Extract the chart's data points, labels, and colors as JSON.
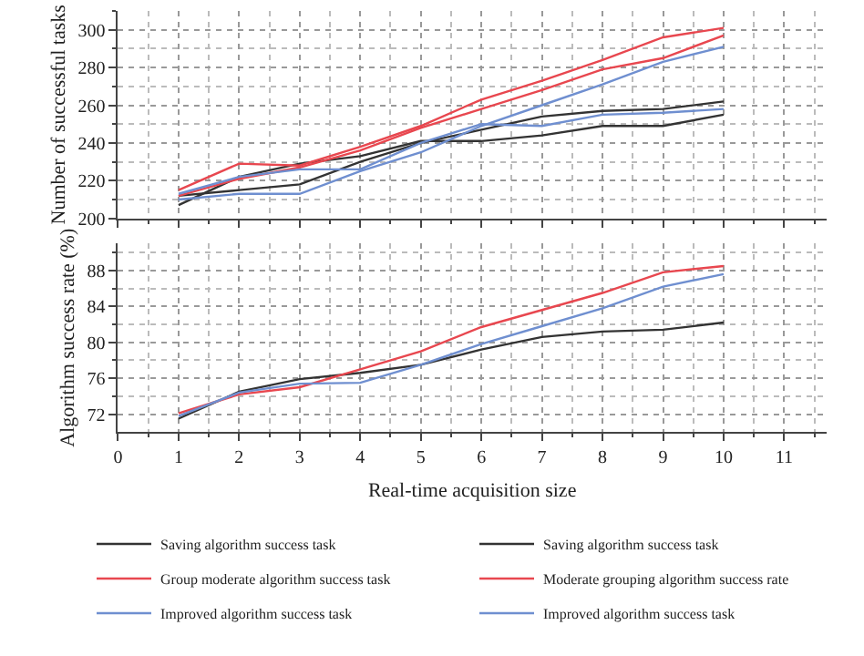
{
  "chart_data": [
    {
      "type": "line",
      "ylabel": "Number of successful tasks",
      "x": [
        1,
        2,
        3,
        4,
        5,
        6,
        7,
        8,
        9,
        10
      ],
      "xlim": [
        0,
        11.7
      ],
      "xticks": [
        0,
        1,
        2,
        3,
        4,
        5,
        6,
        7,
        8,
        9,
        10,
        11
      ],
      "ylim": [
        200,
        310
      ],
      "yticks": [
        200,
        220,
        240,
        260,
        280,
        300
      ],
      "tick_labels": "y",
      "grid": true,
      "legend": "bottom",
      "marker": "none",
      "line_style": "solid",
      "series": [
        {
          "name": "Saving algorithm success task",
          "color": "#333333",
          "values": [
            207,
            222,
            229,
            233,
            241,
            241,
            244,
            249,
            249,
            255
          ]
        },
        {
          "name": "Saving algorithm success task",
          "color": "#333333",
          "values": [
            212,
            215,
            218,
            230,
            240,
            247,
            254,
            257,
            258,
            262
          ]
        },
        {
          "name": "Group moderate algorithm success task",
          "color": "#e8474f",
          "values": [
            215,
            229,
            228,
            238,
            249,
            263,
            273,
            284,
            296,
            301
          ]
        },
        {
          "name": "Moderate grouping algorithm success rate",
          "color": "#e8474f",
          "values": [
            212,
            221,
            227,
            236,
            248,
            258,
            268,
            279,
            285,
            297
          ]
        },
        {
          "name": "Improved algorithm success task",
          "color": "#6f8fd0",
          "values": [
            210,
            213,
            213,
            225,
            235,
            249,
            260,
            271,
            283,
            291
          ]
        },
        {
          "name": "Improved algorithm success task",
          "color": "#6f8fd0",
          "values": [
            213,
            222,
            226,
            226,
            240,
            250,
            249,
            255,
            256,
            258
          ]
        }
      ]
    },
    {
      "type": "line",
      "xlabel": "Real-time acquisition size",
      "ylabel": "Algorithm success rate (%)",
      "x": [
        1,
        2,
        3,
        4,
        5,
        6,
        7,
        8,
        9,
        10
      ],
      "xlim": [
        0,
        11.7
      ],
      "xticks": [
        0,
        1,
        2,
        3,
        4,
        5,
        6,
        7,
        8,
        9,
        10,
        11
      ],
      "ylim": [
        70,
        91
      ],
      "yticks": [
        72,
        76,
        80,
        84,
        88
      ],
      "grid": true,
      "legend": false,
      "marker": "none",
      "line_style": "solid",
      "series": [
        {
          "color": "#333333",
          "values": [
            71.5,
            74.5,
            75.9,
            76.6,
            77.5,
            79.2,
            80.6,
            81.2,
            81.4,
            82.2
          ]
        },
        {
          "color": "#e8474f",
          "values": [
            72.1,
            74.2,
            75.0,
            77.0,
            79.0,
            81.7,
            83.6,
            85.5,
            87.8,
            88.5
          ]
        },
        {
          "color": "#6f8fd0",
          "values": [
            71.8,
            74.4,
            75.4,
            75.5,
            77.5,
            79.8,
            81.8,
            83.8,
            86.2,
            87.6
          ]
        }
      ]
    }
  ]
}
